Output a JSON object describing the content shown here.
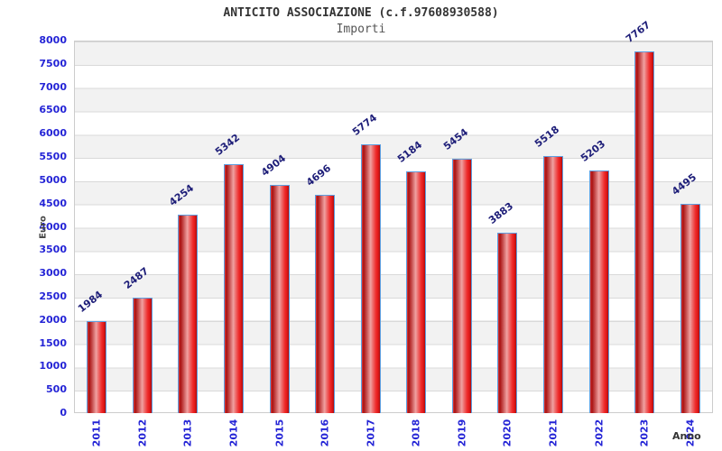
{
  "header": {
    "title": "ANTICITO ASSOCIAZIONE (c.f.97608930588)",
    "subtitle": "Importi"
  },
  "chart_data": {
    "type": "bar",
    "title": "ANTICITO ASSOCIAZIONE (c.f.97608930588)",
    "subtitle": "Importi",
    "xlabel": "Anno",
    "ylabel": "Euro",
    "categories": [
      "2011",
      "2012",
      "2013",
      "2014",
      "2015",
      "2016",
      "2017",
      "2018",
      "2019",
      "2020",
      "2021",
      "2022",
      "2023",
      "2024"
    ],
    "values": [
      1984,
      2487,
      4254,
      5342,
      4904,
      4696,
      5774,
      5184,
      5454,
      3883,
      5518,
      5203,
      7767,
      4495
    ],
    "ylim": [
      0,
      8000
    ],
    "ytick_step": 500,
    "grid": "horizontal gridlines with alternating gray/white bands",
    "legend": "none",
    "colors": {
      "bar_fill": "#e02020",
      "bar_highlight": "#f0a2a2",
      "bar_border": "#5e9fe0",
      "axis_tick_label": "#2424d6",
      "value_label": "#1d1d78",
      "band_gray": "#f2f2f2",
      "gridline": "#d9d9d9",
      "title": "#333333",
      "subtitle": "#555555"
    }
  }
}
